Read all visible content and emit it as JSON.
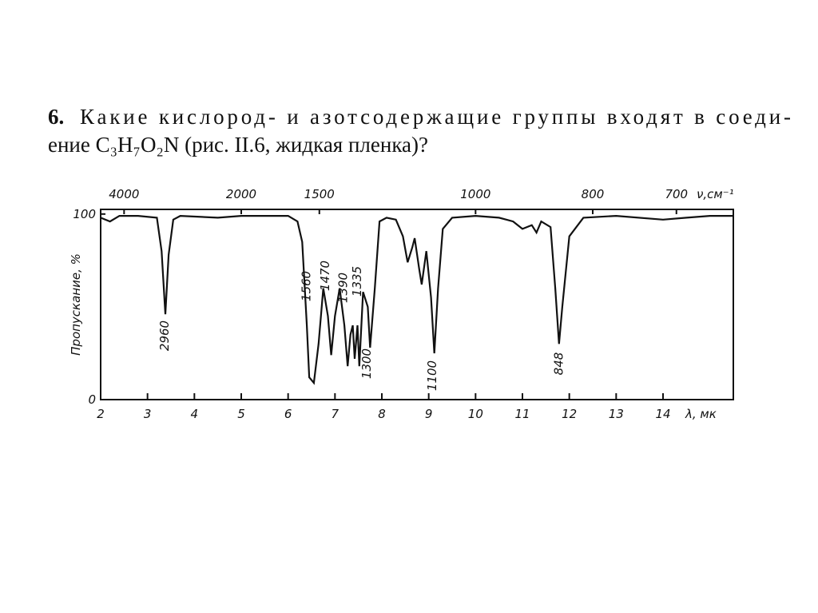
{
  "question": {
    "number": "6.",
    "lines": [
      "Какие кислород- и азотсодержащие группы входят в соеди-",
      "ение C₃H₇O₂N (рис. II.6, жидкая пленка)?"
    ]
  },
  "chart_data": {
    "type": "line",
    "x_label": "λ, мк",
    "y_label": "Пропускание, %",
    "top_label": "ν,см⁻¹",
    "xlim": [
      2,
      15.5
    ],
    "ylim": [
      0,
      102.5
    ],
    "xticks": [
      2,
      3,
      4,
      5,
      6,
      7,
      8,
      9,
      10,
      11,
      12,
      13,
      14
    ],
    "yticks": [
      0,
      100
    ],
    "top_ticks": [
      4000,
      2000,
      1500,
      1000,
      800,
      700
    ],
    "peaks": [
      2960,
      1560,
      1470,
      1390,
      1335,
      1300,
      1100,
      848
    ],
    "color": "#111111",
    "x": [
      2.0,
      2.2,
      2.4,
      2.8,
      3.2,
      3.3,
      3.38,
      3.45,
      3.55,
      3.7,
      4.5,
      5.0,
      5.5,
      6.0,
      6.2,
      6.3,
      6.4,
      6.45,
      6.55,
      6.65,
      6.75,
      6.85,
      6.92,
      7.0,
      7.1,
      7.2,
      7.27,
      7.33,
      7.38,
      7.42,
      7.48,
      7.52,
      7.6,
      7.7,
      7.75,
      7.85,
      7.95,
      8.1,
      8.3,
      8.45,
      8.55,
      8.65,
      8.7,
      8.8,
      8.85,
      8.95,
      9.05,
      9.12,
      9.2,
      9.3,
      9.5,
      10.0,
      10.5,
      10.8,
      11.0,
      11.2,
      11.3,
      11.4,
      11.6,
      11.7,
      11.78,
      11.85,
      12.0,
      12.3,
      13.0,
      14.0,
      14.5,
      15.0,
      15.5
    ],
    "values": [
      98,
      96,
      99,
      99,
      98,
      80,
      46,
      78,
      97,
      99,
      98,
      99,
      99,
      99,
      96,
      85,
      40,
      12,
      9,
      30,
      60,
      45,
      24,
      45,
      60,
      40,
      18,
      35,
      40,
      22,
      40,
      18,
      58,
      50,
      28,
      60,
      96,
      98,
      97,
      88,
      74,
      82,
      87,
      70,
      62,
      80,
      55,
      25,
      60,
      92,
      98,
      99,
      98,
      96,
      92,
      94,
      90,
      96,
      93,
      60,
      30,
      50,
      88,
      98,
      99,
      97,
      98,
      99,
      99
    ]
  }
}
